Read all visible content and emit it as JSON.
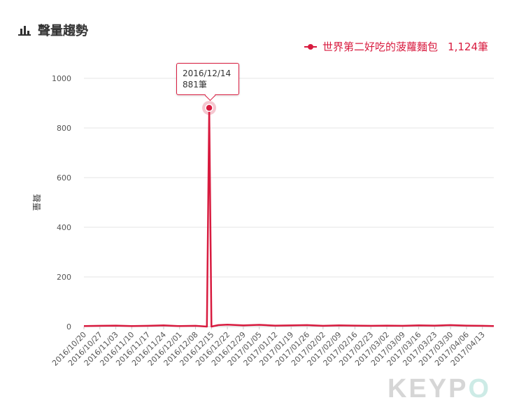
{
  "header": {
    "title": "聲量趨勢",
    "icon": "bar-chart-icon"
  },
  "legend": {
    "label": "世界第二好吃的菠蘿麵包",
    "count": "1,124筆",
    "color": "#d81b3f"
  },
  "tooltip": {
    "date": "2016/12/14",
    "value": "881筆"
  },
  "watermark": {
    "text_main": "KEYP",
    "text_last": "O"
  },
  "chart_data": {
    "type": "line",
    "title": "",
    "xlabel": "",
    "ylabel": "聲量",
    "ylim": [
      0,
      1000
    ],
    "yticks": [
      0,
      200,
      400,
      600,
      800,
      1000
    ],
    "grid": true,
    "legend_position": "top-right",
    "x_tick_labels": [
      "2016/10/20",
      "2016/10/27",
      "2016/11/03",
      "2016/11/10",
      "2016/11/17",
      "2016/11/24",
      "2016/12/01",
      "2016/12/08",
      "2016/12/15",
      "2016/12/22",
      "2016/12/29",
      "2017/01/05",
      "2017/01/12",
      "2017/01/19",
      "2017/01/26",
      "2017/02/02",
      "2017/02/09",
      "2017/02/16",
      "2017/02/23",
      "2017/03/02",
      "2017/03/09",
      "2017/03/16",
      "2017/03/23",
      "2017/03/30",
      "2017/04/06",
      "2017/04/13"
    ],
    "series": [
      {
        "name": "世界第二好吃的菠蘿麵包",
        "color": "#d81b3f",
        "points": [
          [
            "2016/10/20",
            2
          ],
          [
            "2016/10/27",
            3
          ],
          [
            "2016/11/03",
            4
          ],
          [
            "2016/11/10",
            2
          ],
          [
            "2016/11/17",
            3
          ],
          [
            "2016/11/24",
            5
          ],
          [
            "2016/12/01",
            2
          ],
          [
            "2016/12/08",
            3
          ],
          [
            "2016/12/13",
            0
          ],
          [
            "2016/12/14",
            881
          ],
          [
            "2016/12/15",
            0
          ],
          [
            "2016/12/18",
            6
          ],
          [
            "2016/12/22",
            8
          ],
          [
            "2016/12/29",
            5
          ],
          [
            "2017/01/05",
            7
          ],
          [
            "2017/01/12",
            4
          ],
          [
            "2017/01/19",
            5
          ],
          [
            "2017/01/26",
            6
          ],
          [
            "2017/02/02",
            3
          ],
          [
            "2017/02/09",
            5
          ],
          [
            "2017/02/16",
            4
          ],
          [
            "2017/02/23",
            3
          ],
          [
            "2017/03/02",
            4
          ],
          [
            "2017/03/09",
            3
          ],
          [
            "2017/03/16",
            5
          ],
          [
            "2017/03/23",
            4
          ],
          [
            "2017/03/30",
            6
          ],
          [
            "2017/04/06",
            4
          ],
          [
            "2017/04/13",
            3
          ],
          [
            "2017/04/18",
            2
          ]
        ]
      }
    ],
    "highlight": {
      "date": "2016/12/14",
      "value": 881
    }
  }
}
